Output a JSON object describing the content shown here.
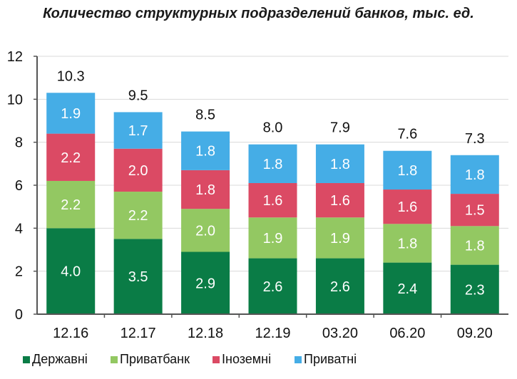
{
  "chart_data": {
    "type": "bar",
    "stacked": true,
    "title": "Количество структурных подразделений банков, тыс. ед.",
    "xlabel": "",
    "ylabel": "",
    "ylim": [
      0,
      12
    ],
    "yticks": [
      "0",
      "2",
      "4",
      "6",
      "8",
      "10",
      "12"
    ],
    "grid": true,
    "legend_position": "bottom",
    "categories": [
      "12.16",
      "12.17",
      "12.18",
      "12.19",
      "03.20",
      "06.20",
      "09.20"
    ],
    "totals": [
      "10.3",
      "9.5",
      "8.5",
      "8.0",
      "7.9",
      "7.6",
      "7.3"
    ],
    "series": [
      {
        "name": "Державні",
        "color": "#0a7c46",
        "values": [
          4.0,
          3.5,
          2.9,
          2.6,
          2.6,
          2.4,
          2.3
        ]
      },
      {
        "name": "Приватбанк",
        "color": "#93c862",
        "values": [
          2.2,
          2.2,
          2.0,
          1.9,
          1.9,
          1.8,
          1.8
        ]
      },
      {
        "name": "Іноземні",
        "color": "#db4a64",
        "values": [
          2.2,
          2.0,
          1.8,
          1.6,
          1.6,
          1.6,
          1.5
        ]
      },
      {
        "name": "Приватні",
        "color": "#45ade6",
        "values": [
          1.9,
          1.7,
          1.8,
          1.8,
          1.8,
          1.8,
          1.8
        ]
      }
    ]
  }
}
